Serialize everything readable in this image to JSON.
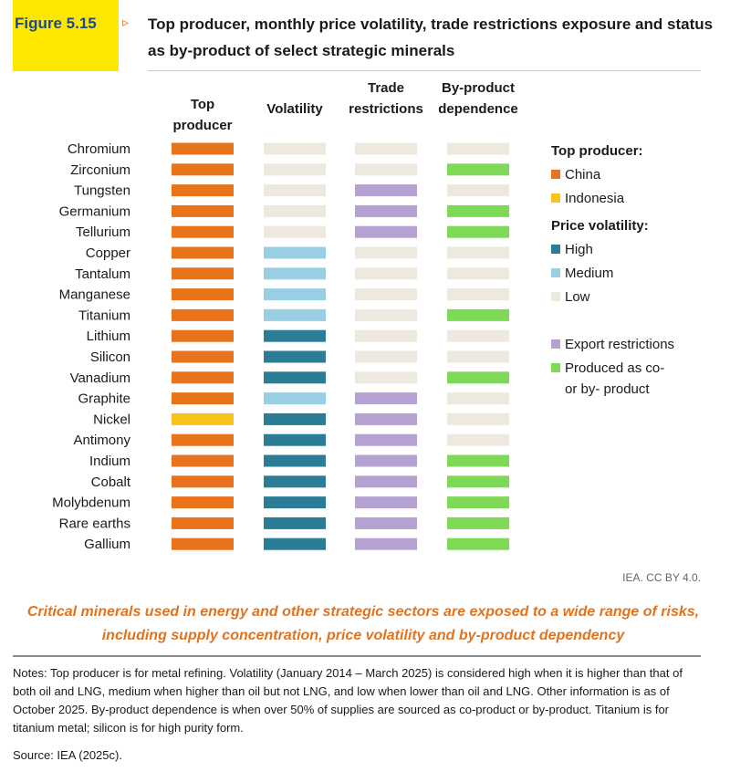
{
  "figure": {
    "number": "Figure 5.15",
    "arrow": "▹",
    "title": "Top producer, monthly price volatility, trade restrictions exposure and status as by-product of select strategic minerals",
    "credit": "IEA. CC BY 4.0.",
    "caption": "Critical minerals used in energy and other strategic sectors are exposed to a wide range of risks, including supply concentration, price volatility and by-product dependency",
    "notes": "Notes: Top producer is for metal refining. Volatility (January 2014 – March 2025) is considered high when it is higher than that of both oil and LNG, medium when higher than oil but not LNG, and low when lower than oil and LNG. Other information is as of October 2025. By-product dependence is when over 50% of supplies are sourced as co-product or by-product. Titanium is for titanium metal; silicon is for high purity form.",
    "source": "Source: IEA (2025c)."
  },
  "chart_data": {
    "type": "table",
    "columns": [
      {
        "key": "producer",
        "label": [
          "Top",
          "producer"
        ]
      },
      {
        "key": "volatility",
        "label": [
          "Volatility"
        ]
      },
      {
        "key": "trade",
        "label": [
          "Trade",
          "restrictions"
        ]
      },
      {
        "key": "byproduct",
        "label": [
          "By-product",
          "dependence"
        ]
      }
    ],
    "rows": [
      {
        "mineral": "Chromium",
        "producer": "China",
        "volatility": "Low",
        "trade": "None",
        "byproduct": "No"
      },
      {
        "mineral": "Zirconium",
        "producer": "China",
        "volatility": "Low",
        "trade": "None",
        "byproduct": "Yes"
      },
      {
        "mineral": "Tungsten",
        "producer": "China",
        "volatility": "Low",
        "trade": "Export",
        "byproduct": "No"
      },
      {
        "mineral": "Germanium",
        "producer": "China",
        "volatility": "Low",
        "trade": "Export",
        "byproduct": "Yes"
      },
      {
        "mineral": "Tellurium",
        "producer": "China",
        "volatility": "Low",
        "trade": "Export",
        "byproduct": "Yes"
      },
      {
        "mineral": "Copper",
        "producer": "China",
        "volatility": "Medium",
        "trade": "None",
        "byproduct": "No"
      },
      {
        "mineral": "Tantalum",
        "producer": "China",
        "volatility": "Medium",
        "trade": "None",
        "byproduct": "No"
      },
      {
        "mineral": "Manganese",
        "producer": "China",
        "volatility": "Medium",
        "trade": "None",
        "byproduct": "No"
      },
      {
        "mineral": "Titanium",
        "producer": "China",
        "volatility": "Medium",
        "trade": "None",
        "byproduct": "Yes"
      },
      {
        "mineral": "Lithium",
        "producer": "China",
        "volatility": "High",
        "trade": "None",
        "byproduct": "No"
      },
      {
        "mineral": "Silicon",
        "producer": "China",
        "volatility": "High",
        "trade": "None",
        "byproduct": "No"
      },
      {
        "mineral": "Vanadium",
        "producer": "China",
        "volatility": "High",
        "trade": "None",
        "byproduct": "Yes"
      },
      {
        "mineral": "Graphite",
        "producer": "China",
        "volatility": "Medium",
        "trade": "Export",
        "byproduct": "No"
      },
      {
        "mineral": "Nickel",
        "producer": "Indonesia",
        "volatility": "High",
        "trade": "Export",
        "byproduct": "No"
      },
      {
        "mineral": "Antimony",
        "producer": "China",
        "volatility": "High",
        "trade": "Export",
        "byproduct": "No"
      },
      {
        "mineral": "Indium",
        "producer": "China",
        "volatility": "High",
        "trade": "Export",
        "byproduct": "Yes"
      },
      {
        "mineral": "Cobalt",
        "producer": "China",
        "volatility": "High",
        "trade": "Export",
        "byproduct": "Yes"
      },
      {
        "mineral": "Molybdenum",
        "producer": "China",
        "volatility": "High",
        "trade": "Export",
        "byproduct": "Yes"
      },
      {
        "mineral": "Rare earths",
        "producer": "China",
        "volatility": "High",
        "trade": "Export",
        "byproduct": "Yes"
      },
      {
        "mineral": "Gallium",
        "producer": "China",
        "volatility": "High",
        "trade": "Export",
        "byproduct": "Yes"
      }
    ],
    "legend": [
      {
        "heading": "Top producer:",
        "items": [
          {
            "label": "China",
            "color": "#e8731a"
          },
          {
            "label": "Indonesia",
            "color": "#f7c21b"
          }
        ]
      },
      {
        "heading": "Price volatility:",
        "items": [
          {
            "label": "High",
            "color": "#2b7d95"
          },
          {
            "label": "Medium",
            "color": "#98cfe2"
          },
          {
            "label": "Low",
            "color": "#ede9df"
          }
        ]
      },
      {
        "heading": "",
        "items": [
          {
            "label": "Export restrictions",
            "color": "#b5a1d2"
          },
          {
            "label": [
              "Produced as co-",
              "or by- product"
            ],
            "color": "#7ed957"
          }
        ]
      }
    ],
    "colors": {
      "producer": {
        "China": "#e8731a",
        "Indonesia": "#f7c21b"
      },
      "volatility": {
        "High": "#2b7d95",
        "Medium": "#98cfe2",
        "Low": "#ede9df"
      },
      "trade": {
        "Export": "#b5a1d2",
        "None": "#ede9df"
      },
      "byproduct": {
        "Yes": "#7ed957",
        "No": "#ede9df"
      }
    }
  }
}
